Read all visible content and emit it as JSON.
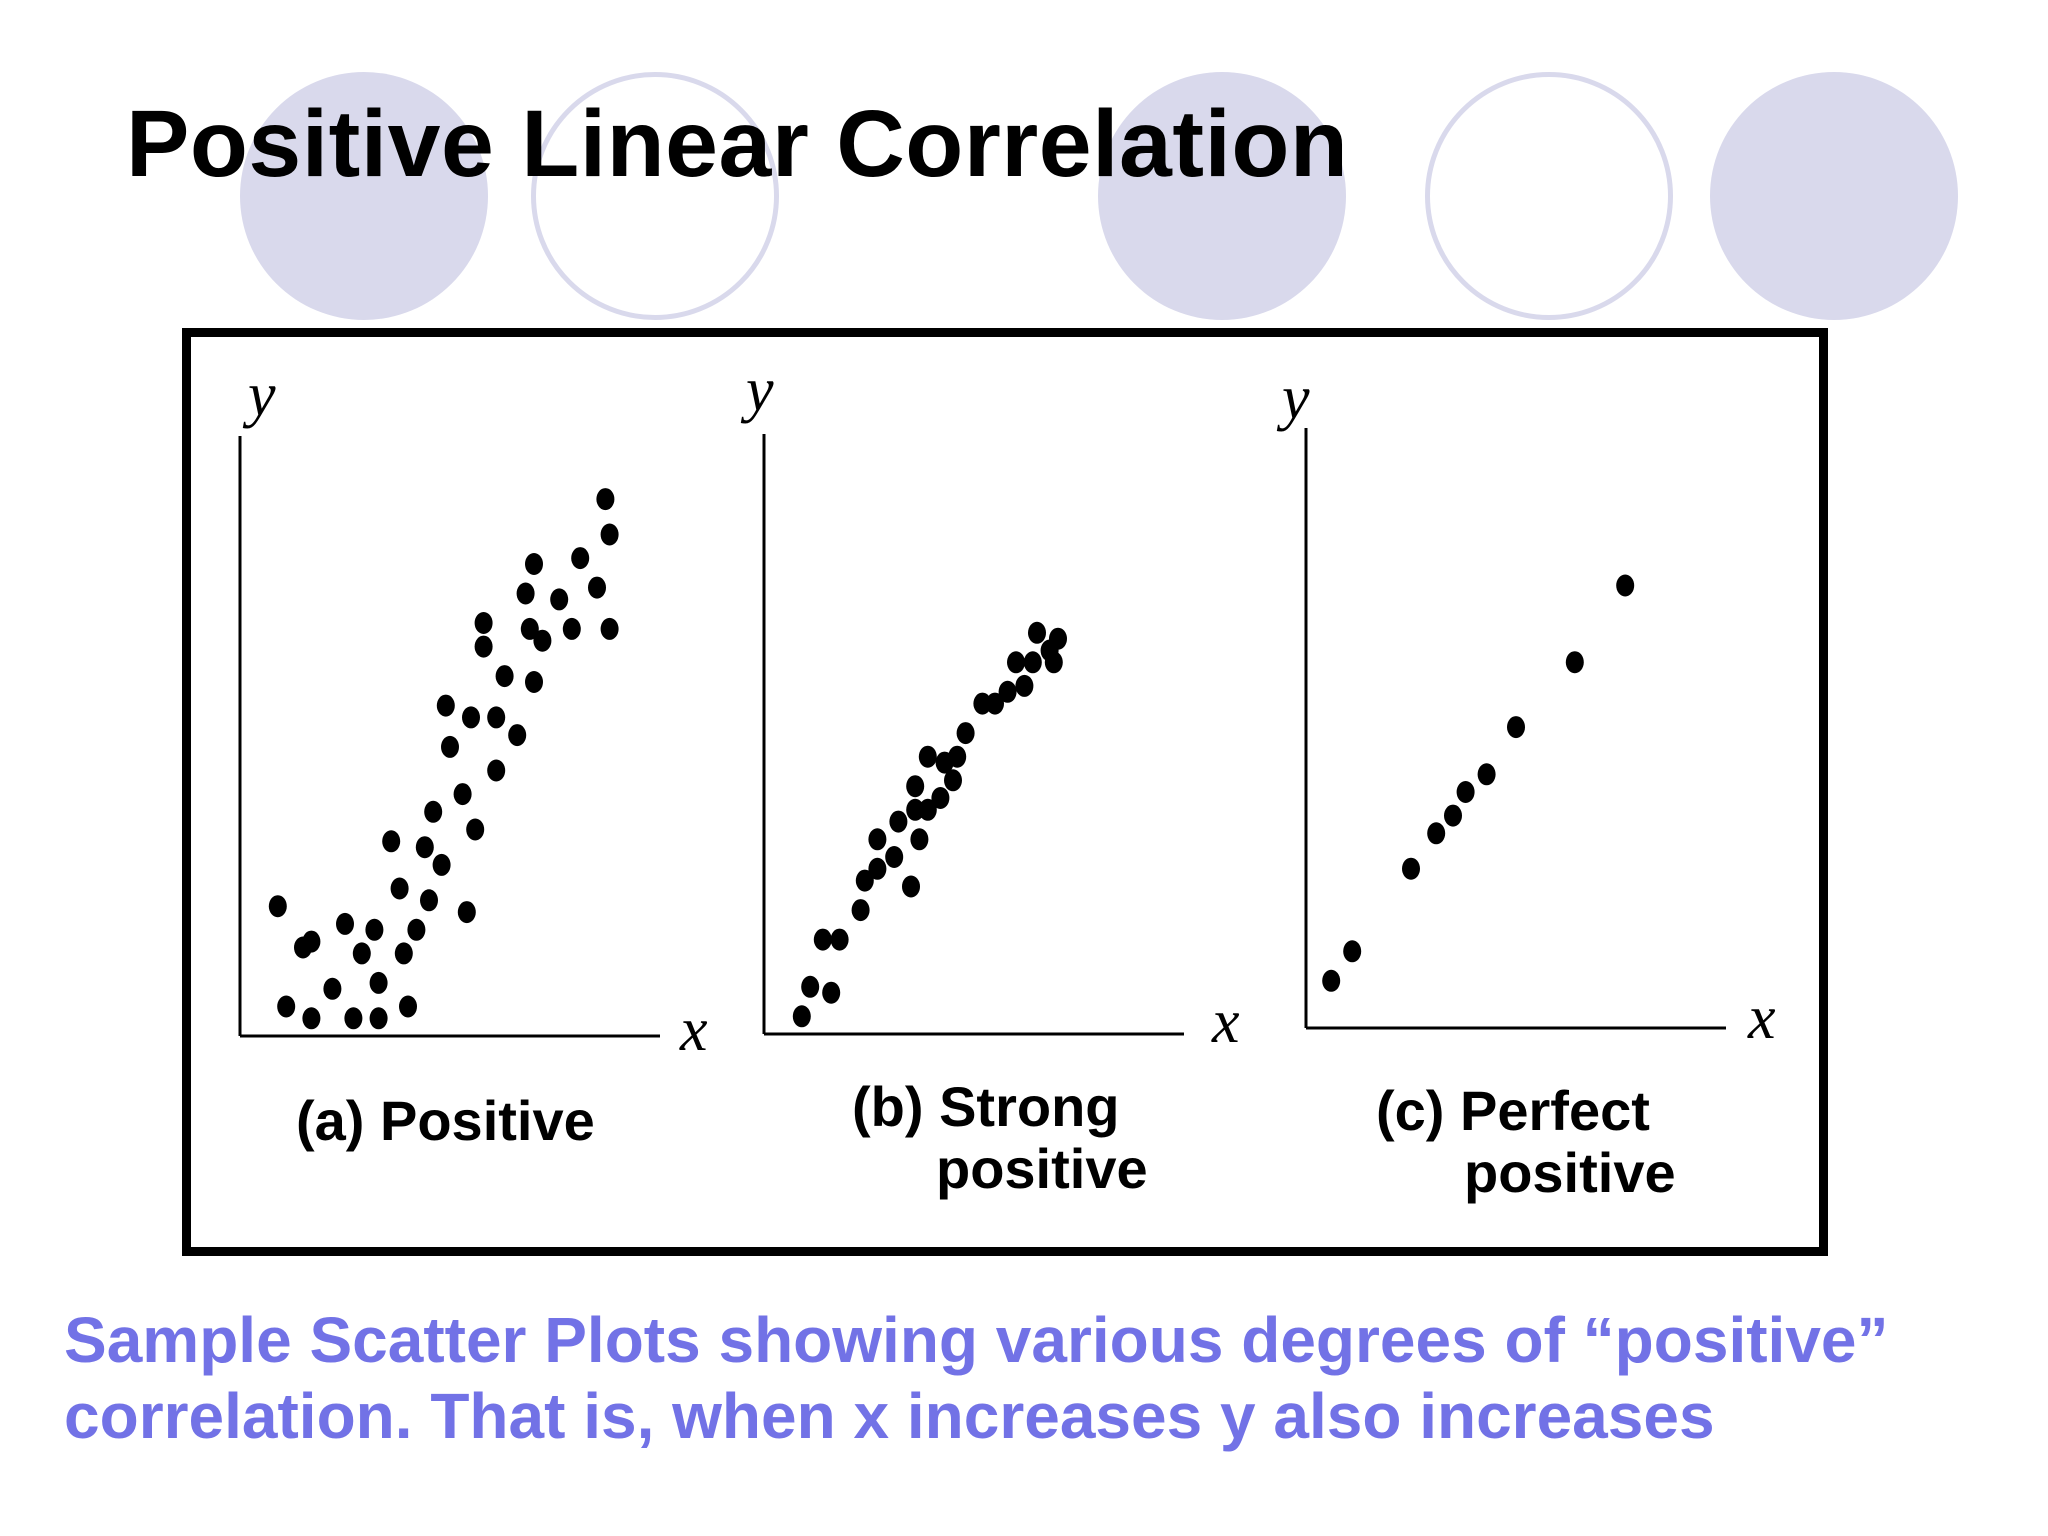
{
  "slide": {
    "title": "Positive Linear Correlation",
    "caption_line1": "Sample Scatter Plots showing various degrees of “positive”",
    "caption_line2": "correlation.  That is, when x increases y also increases"
  },
  "colors": {
    "title": "#000000",
    "caption": "#7272e6",
    "decor_circle": "#d9d9ec",
    "points": "#000000"
  },
  "chart_data": [
    {
      "type": "scatter",
      "title": "",
      "caption_line1": "(a) Positive",
      "caption_line2": "",
      "xlabel": "x",
      "ylabel": "y",
      "xlim": [
        0,
        10
      ],
      "ylim": [
        0,
        10
      ],
      "grid": false,
      "ticks": false,
      "points": [
        {
          "x": 0.9,
          "y": 2.2
        },
        {
          "x": 1.1,
          "y": 0.5
        },
        {
          "x": 1.5,
          "y": 1.5
        },
        {
          "x": 1.7,
          "y": 1.6
        },
        {
          "x": 1.7,
          "y": 0.3
        },
        {
          "x": 2.2,
          "y": 0.8
        },
        {
          "x": 2.5,
          "y": 1.9
        },
        {
          "x": 2.7,
          "y": 0.3
        },
        {
          "x": 2.9,
          "y": 1.4
        },
        {
          "x": 3.2,
          "y": 1.8
        },
        {
          "x": 3.3,
          "y": 0.9
        },
        {
          "x": 3.3,
          "y": 0.3
        },
        {
          "x": 3.6,
          "y": 3.3
        },
        {
          "x": 3.8,
          "y": 2.5
        },
        {
          "x": 3.9,
          "y": 1.4
        },
        {
          "x": 4.0,
          "y": 0.5
        },
        {
          "x": 4.2,
          "y": 1.8
        },
        {
          "x": 4.4,
          "y": 3.2
        },
        {
          "x": 4.5,
          "y": 2.3
        },
        {
          "x": 4.6,
          "y": 3.8
        },
        {
          "x": 4.8,
          "y": 2.9
        },
        {
          "x": 4.9,
          "y": 5.6
        },
        {
          "x": 5.0,
          "y": 4.9
        },
        {
          "x": 5.3,
          "y": 4.1
        },
        {
          "x": 5.4,
          "y": 2.1
        },
        {
          "x": 5.5,
          "y": 5.4
        },
        {
          "x": 5.6,
          "y": 3.5
        },
        {
          "x": 5.8,
          "y": 7.0
        },
        {
          "x": 5.8,
          "y": 6.6
        },
        {
          "x": 6.1,
          "y": 5.4
        },
        {
          "x": 6.1,
          "y": 4.5
        },
        {
          "x": 6.3,
          "y": 6.1
        },
        {
          "x": 6.6,
          "y": 5.1
        },
        {
          "x": 6.8,
          "y": 7.5
        },
        {
          "x": 6.9,
          "y": 6.9
        },
        {
          "x": 7.0,
          "y": 6.0
        },
        {
          "x": 7.0,
          "y": 8.0
        },
        {
          "x": 7.2,
          "y": 6.7
        },
        {
          "x": 7.6,
          "y": 7.4
        },
        {
          "x": 7.9,
          "y": 6.9
        },
        {
          "x": 8.1,
          "y": 8.1
        },
        {
          "x": 8.5,
          "y": 7.6
        },
        {
          "x": 8.7,
          "y": 9.1
        },
        {
          "x": 8.8,
          "y": 8.5
        },
        {
          "x": 8.8,
          "y": 6.9
        }
      ]
    },
    {
      "type": "scatter",
      "title": "",
      "caption_line1": "(b) Strong",
      "caption_line2": "positive",
      "xlabel": "x",
      "ylabel": "y",
      "xlim": [
        0,
        10
      ],
      "ylim": [
        0,
        10
      ],
      "grid": false,
      "ticks": false,
      "points": [
        {
          "x": 0.9,
          "y": 0.3
        },
        {
          "x": 1.1,
          "y": 0.8
        },
        {
          "x": 1.6,
          "y": 0.7
        },
        {
          "x": 1.4,
          "y": 1.6
        },
        {
          "x": 1.8,
          "y": 1.6
        },
        {
          "x": 2.3,
          "y": 2.1
        },
        {
          "x": 2.4,
          "y": 2.6
        },
        {
          "x": 2.7,
          "y": 3.3
        },
        {
          "x": 2.7,
          "y": 2.8
        },
        {
          "x": 3.1,
          "y": 3.0
        },
        {
          "x": 3.2,
          "y": 3.6
        },
        {
          "x": 3.5,
          "y": 2.5
        },
        {
          "x": 3.6,
          "y": 3.8
        },
        {
          "x": 3.6,
          "y": 4.2
        },
        {
          "x": 3.7,
          "y": 3.3
        },
        {
          "x": 3.9,
          "y": 4.7
        },
        {
          "x": 3.9,
          "y": 3.8
        },
        {
          "x": 4.2,
          "y": 4.0
        },
        {
          "x": 4.3,
          "y": 4.6
        },
        {
          "x": 4.5,
          "y": 4.3
        },
        {
          "x": 4.6,
          "y": 4.7
        },
        {
          "x": 4.8,
          "y": 5.1
        },
        {
          "x": 5.2,
          "y": 5.6
        },
        {
          "x": 5.5,
          "y": 5.6
        },
        {
          "x": 5.8,
          "y": 5.8
        },
        {
          "x": 6.0,
          "y": 6.3
        },
        {
          "x": 6.2,
          "y": 5.9
        },
        {
          "x": 6.4,
          "y": 6.3
        },
        {
          "x": 6.5,
          "y": 6.8
        },
        {
          "x": 6.8,
          "y": 6.5
        },
        {
          "x": 6.9,
          "y": 6.3
        },
        {
          "x": 7.0,
          "y": 6.7
        }
      ]
    },
    {
      "type": "scatter",
      "title": "",
      "caption_line1": "(c) Perfect",
      "caption_line2": "positive",
      "xlabel": "x",
      "ylabel": "y",
      "xlim": [
        0,
        10
      ],
      "ylim": [
        0,
        10
      ],
      "grid": false,
      "ticks": false,
      "points": [
        {
          "x": 0.6,
          "y": 0.8
        },
        {
          "x": 1.1,
          "y": 1.3
        },
        {
          "x": 2.5,
          "y": 2.7
        },
        {
          "x": 3.1,
          "y": 3.3
        },
        {
          "x": 3.5,
          "y": 3.6
        },
        {
          "x": 3.8,
          "y": 4.0
        },
        {
          "x": 4.3,
          "y": 4.3
        },
        {
          "x": 5.0,
          "y": 5.1
        },
        {
          "x": 6.4,
          "y": 6.2
        },
        {
          "x": 7.6,
          "y": 7.5
        }
      ]
    }
  ]
}
